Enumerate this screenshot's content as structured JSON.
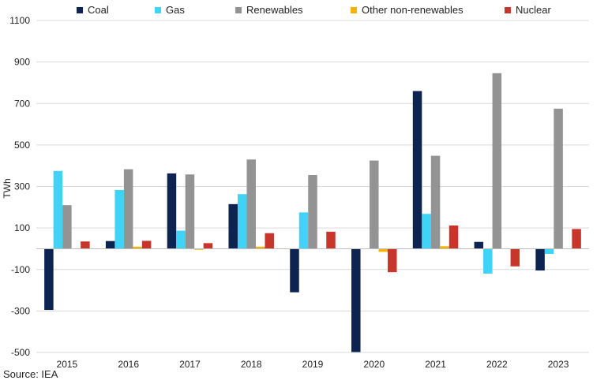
{
  "chart_data": {
    "type": "bar",
    "ylabel": "TWh",
    "ylim": [
      -500,
      1100
    ],
    "yticks": [
      1100,
      900,
      700,
      500,
      300,
      100,
      -100,
      -300,
      -500
    ],
    "grid": true,
    "legend_position": "top",
    "categories": [
      "2015",
      "2016",
      "2017",
      "2018",
      "2019",
      "2020",
      "2021",
      "2022",
      "2023"
    ],
    "series": [
      {
        "name": "Coal",
        "color": "#0d2350",
        "values": [
          -295,
          37,
          363,
          215,
          -210,
          -498,
          760,
          33,
          -105
        ]
      },
      {
        "name": "Gas",
        "color": "#3fd3f5",
        "values": [
          375,
          283,
          87,
          263,
          175,
          0,
          168,
          -120,
          -25
        ]
      },
      {
        "name": "Renewables",
        "color": "#939393",
        "values": [
          210,
          383,
          358,
          430,
          355,
          425,
          448,
          846,
          675
        ]
      },
      {
        "name": "Other non-renewables",
        "color": "#f5b300",
        "values": [
          0,
          10,
          -5,
          10,
          0,
          -15,
          12,
          0,
          0
        ]
      },
      {
        "name": "Nuclear",
        "color": "#c7352b",
        "values": [
          35,
          38,
          27,
          75,
          82,
          -113,
          112,
          -85,
          95
        ]
      }
    ]
  },
  "source": "Source: IEA"
}
